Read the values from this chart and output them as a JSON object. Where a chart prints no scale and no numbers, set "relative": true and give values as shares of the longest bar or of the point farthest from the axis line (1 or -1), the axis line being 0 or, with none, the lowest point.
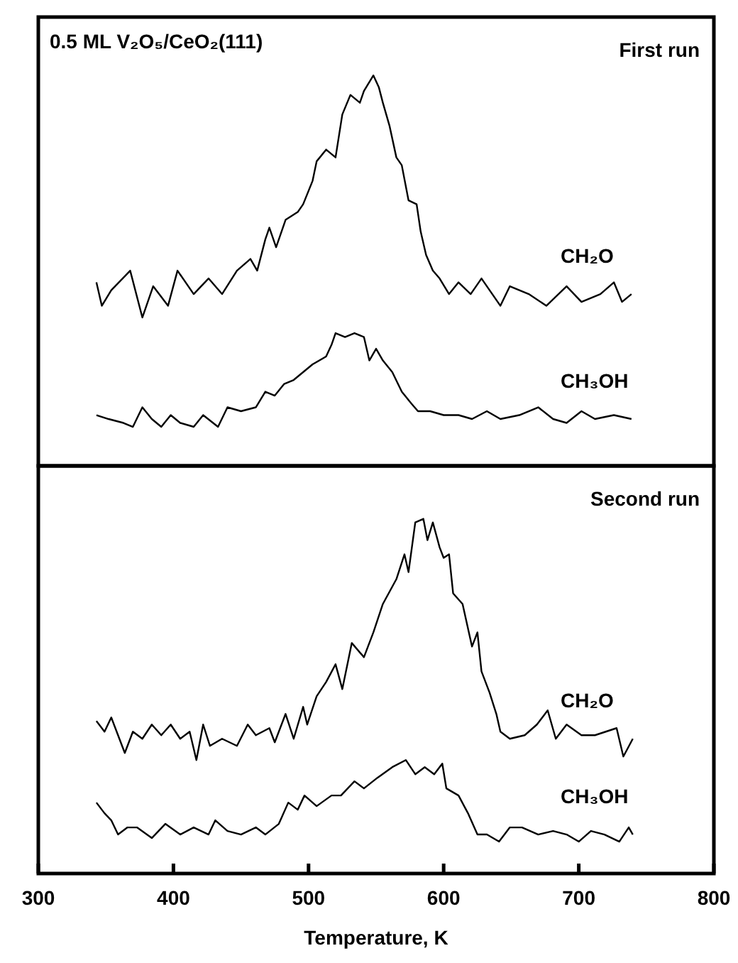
{
  "chart_data": [
    {
      "type": "line",
      "title": "0.5 ML V₂O₅/CeO₂(111)",
      "subtitle": "First run",
      "relative": true,
      "xlim": [
        300,
        800
      ],
      "tick_labels": false,
      "series": [
        {
          "name": "CH₂O",
          "color": "#000000",
          "x": [
            343,
            347,
            354,
            368,
            377,
            385,
            396,
            403,
            415,
            426,
            436,
            447,
            457,
            462,
            468,
            471,
            476,
            483,
            492,
            496,
            503,
            506,
            513,
            520,
            525,
            531,
            538,
            541,
            548,
            552,
            555,
            560,
            565,
            569,
            574,
            580,
            583,
            587,
            592,
            597,
            604,
            611,
            620,
            628,
            642,
            649,
            663,
            676,
            691,
            702,
            716,
            726,
            732,
            739
          ],
          "values": [
            0.47,
            0.41,
            0.45,
            0.5,
            0.38,
            0.46,
            0.41,
            0.5,
            0.44,
            0.48,
            0.44,
            0.5,
            0.53,
            0.5,
            0.58,
            0.61,
            0.56,
            0.63,
            0.65,
            0.67,
            0.73,
            0.78,
            0.81,
            0.79,
            0.9,
            0.95,
            0.93,
            0.96,
            1,
            0.97,
            0.93,
            0.87,
            0.79,
            0.77,
            0.68,
            0.67,
            0.6,
            0.54,
            0.5,
            0.48,
            0.44,
            0.47,
            0.44,
            0.48,
            0.41,
            0.46,
            0.44,
            0.41,
            0.46,
            0.42,
            0.44,
            0.47,
            0.42,
            0.44
          ]
        },
        {
          "name": "CH₃OH",
          "color": "#000000",
          "x": [
            343,
            352,
            363,
            370,
            377,
            384,
            391,
            398,
            405,
            415,
            422,
            433,
            440,
            450,
            461,
            468,
            475,
            482,
            489,
            496,
            503,
            513,
            517,
            520,
            527,
            534,
            541,
            545,
            550,
            555,
            562,
            569,
            576,
            581,
            590,
            600,
            611,
            621,
            632,
            642,
            656,
            670,
            681,
            691,
            702,
            712,
            726,
            739
          ],
          "values": [
            0.13,
            0.12,
            0.11,
            0.1,
            0.15,
            0.12,
            0.1,
            0.13,
            0.11,
            0.1,
            0.13,
            0.1,
            0.15,
            0.14,
            0.15,
            0.19,
            0.18,
            0.21,
            0.22,
            0.24,
            0.26,
            0.28,
            0.31,
            0.34,
            0.33,
            0.34,
            0.33,
            0.27,
            0.3,
            0.27,
            0.24,
            0.19,
            0.16,
            0.14,
            0.14,
            0.13,
            0.13,
            0.12,
            0.14,
            0.12,
            0.13,
            0.15,
            0.12,
            0.11,
            0.14,
            0.12,
            0.13,
            0.12
          ]
        }
      ]
    },
    {
      "type": "line",
      "subtitle": "Second run",
      "xlabel": "Temperature, K",
      "relative": true,
      "xlim": [
        300,
        800
      ],
      "xticks": [
        300,
        400,
        500,
        600,
        700,
        800
      ],
      "tick_labels": "x",
      "series": [
        {
          "name": "CH₂O",
          "color": "#000000",
          "x": [
            343,
            349,
            354,
            359,
            364,
            370,
            377,
            384,
            391,
            398,
            405,
            412,
            417,
            422,
            427,
            436,
            447,
            455,
            461,
            471,
            475,
            483,
            489,
            496,
            499,
            506,
            513,
            520,
            525,
            532,
            541,
            548,
            555,
            565,
            571,
            574,
            579,
            585,
            588,
            592,
            597,
            600,
            604,
            607,
            614,
            621,
            625,
            628,
            634,
            639,
            642,
            649,
            660,
            669,
            677,
            683,
            691,
            702,
            712,
            728,
            733,
            740
          ],
          "values": [
            0.43,
            0.4,
            0.44,
            0.39,
            0.34,
            0.4,
            0.38,
            0.42,
            0.39,
            0.42,
            0.38,
            0.4,
            0.32,
            0.42,
            0.36,
            0.38,
            0.36,
            0.42,
            0.39,
            0.41,
            0.37,
            0.45,
            0.38,
            0.47,
            0.42,
            0.5,
            0.54,
            0.59,
            0.52,
            0.65,
            0.61,
            0.68,
            0.76,
            0.83,
            0.9,
            0.85,
            0.99,
            1,
            0.94,
            0.99,
            0.92,
            0.89,
            0.9,
            0.79,
            0.76,
            0.64,
            0.68,
            0.57,
            0.51,
            0.45,
            0.4,
            0.38,
            0.39,
            0.42,
            0.46,
            0.38,
            0.42,
            0.39,
            0.39,
            0.41,
            0.33,
            0.38
          ]
        },
        {
          "name": "CH₃OH",
          "color": "#000000",
          "x": [
            343,
            349,
            354,
            359,
            366,
            373,
            384,
            394,
            405,
            415,
            426,
            431,
            440,
            450,
            461,
            468,
            478,
            485,
            492,
            497,
            506,
            517,
            524,
            534,
            541,
            551,
            562,
            572,
            579,
            586,
            593,
            599,
            602,
            611,
            618,
            625,
            632,
            641,
            649,
            658,
            670,
            681,
            691,
            700,
            709,
            719,
            730,
            737,
            740
          ],
          "values": [
            0.2,
            0.17,
            0.15,
            0.11,
            0.13,
            0.13,
            0.1,
            0.14,
            0.11,
            0.13,
            0.11,
            0.15,
            0.12,
            0.11,
            0.13,
            0.11,
            0.14,
            0.2,
            0.18,
            0.22,
            0.19,
            0.22,
            0.22,
            0.26,
            0.24,
            0.27,
            0.3,
            0.32,
            0.28,
            0.3,
            0.28,
            0.31,
            0.24,
            0.22,
            0.17,
            0.11,
            0.11,
            0.09,
            0.13,
            0.13,
            0.11,
            0.12,
            0.11,
            0.09,
            0.12,
            0.11,
            0.09,
            0.13,
            0.11
          ]
        }
      ]
    }
  ]
}
